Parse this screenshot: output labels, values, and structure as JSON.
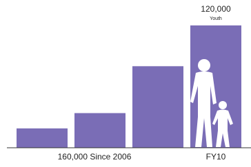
{
  "chart_data": {
    "type": "bar",
    "categories": [
      null,
      null,
      null,
      "FY10"
    ],
    "group_label": "160,000 Since 2006",
    "values": [
      19000,
      34000,
      80000,
      120000
    ],
    "value_labels": [
      null,
      null,
      null,
      "120,000"
    ],
    "unit_label": "Youth",
    "color": "#7a6db6"
  }
}
